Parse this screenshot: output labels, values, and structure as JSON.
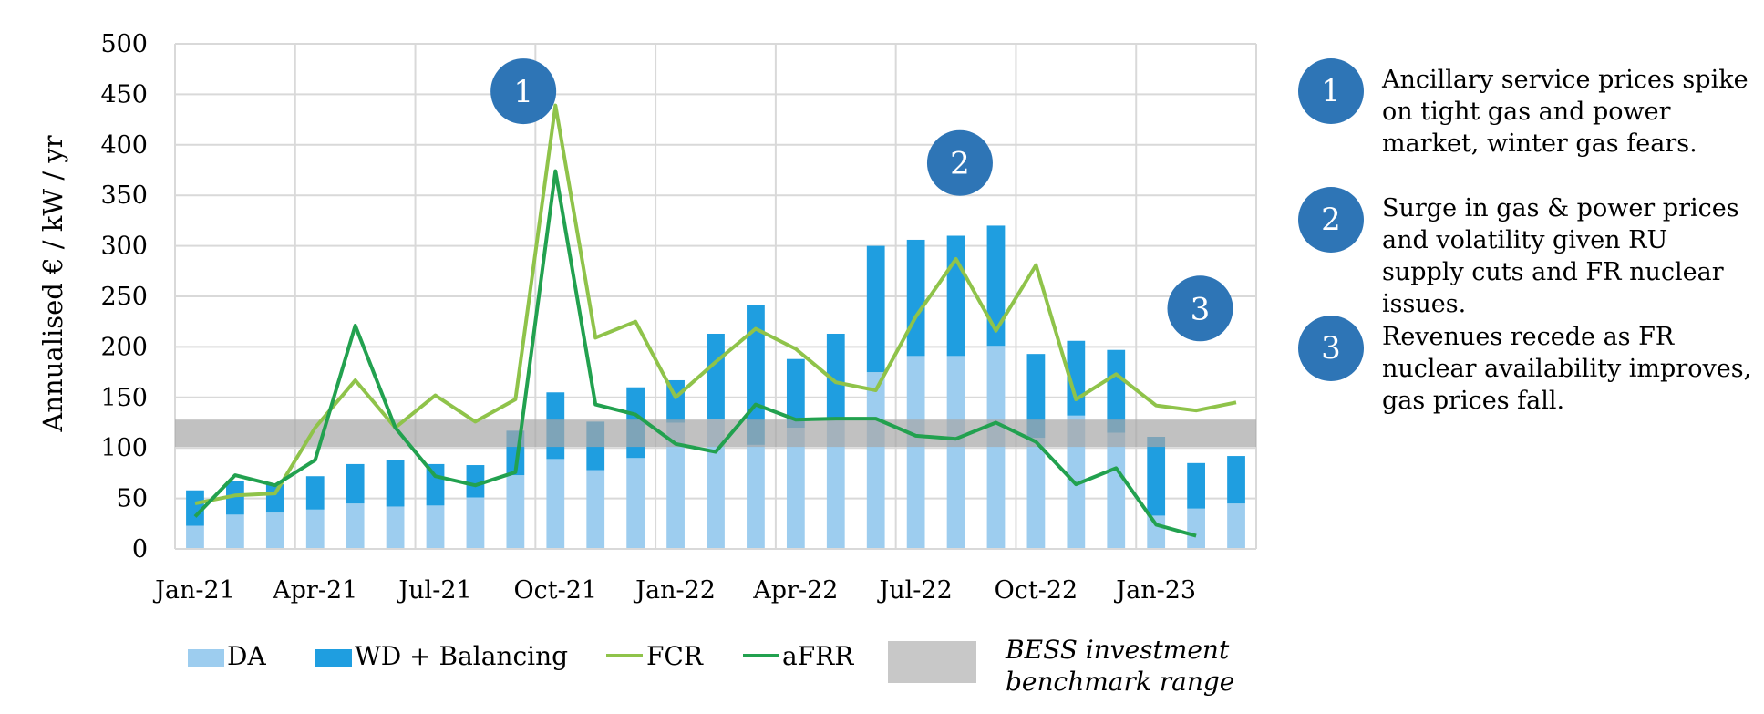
{
  "chart_data": {
    "type": "bar",
    "title": "",
    "xlabel": "",
    "ylabel": "Annualised € / kW / yr",
    "ylim": [
      0,
      500
    ],
    "yticks": [
      0,
      50,
      100,
      150,
      200,
      250,
      300,
      350,
      400,
      450,
      500
    ],
    "grid": true,
    "legend_position": "bottom",
    "categories": [
      "Jan-21",
      "Feb-21",
      "Mar-21",
      "Apr-21",
      "May-21",
      "Jun-21",
      "Jul-21",
      "Aug-21",
      "Sep-21",
      "Oct-21",
      "Nov-21",
      "Dec-21",
      "Jan-22",
      "Feb-22",
      "Mar-22",
      "Apr-22",
      "May-22",
      "Jun-22",
      "Jul-22",
      "Aug-22",
      "Sep-22",
      "Oct-22",
      "Nov-22",
      "Dec-22",
      "Jan-23",
      "Feb-23",
      "Mar-23"
    ],
    "xtick_labels": [
      {
        "index": 0,
        "label": "Jan-21"
      },
      {
        "index": 3,
        "label": "Apr-21"
      },
      {
        "index": 6,
        "label": "Jul-21"
      },
      {
        "index": 9,
        "label": "Oct-21"
      },
      {
        "index": 12,
        "label": "Jan-22"
      },
      {
        "index": 15,
        "label": "Apr-22"
      },
      {
        "index": 18,
        "label": "Jul-22"
      },
      {
        "index": 21,
        "label": "Oct-22"
      },
      {
        "index": 24,
        "label": "Jan-23"
      }
    ],
    "bar_series": [
      {
        "name": "DA",
        "color": "#9dcdef",
        "values": [
          23,
          34,
          36,
          39,
          45,
          42,
          43,
          51,
          73,
          89,
          78,
          90,
          125,
          128,
          103,
          120,
          130,
          175,
          191,
          191,
          201,
          110,
          132,
          115,
          33,
          40,
          45
        ]
      },
      {
        "name": "WD + Balancing",
        "color": "#1f9ee0",
        "values": [
          35,
          33,
          28,
          33,
          39,
          46,
          41,
          32,
          44,
          66,
          48,
          70,
          42,
          85,
          138,
          68,
          83,
          125,
          115,
          119,
          119,
          83,
          74,
          82,
          78,
          45,
          47
        ]
      }
    ],
    "line_series": [
      {
        "name": "FCR",
        "color": "#8fc34a",
        "values": [
          45,
          53,
          55,
          120,
          167,
          120,
          152,
          126,
          148,
          439,
          209,
          225,
          150,
          185,
          218,
          198,
          165,
          157,
          230,
          287,
          216,
          281,
          148,
          173,
          142,
          137,
          145
        ]
      },
      {
        "name": "aFRR",
        "color": "#22a14f",
        "values": [
          32,
          73,
          63,
          88,
          221,
          120,
          72,
          63,
          76,
          374,
          143,
          133,
          104,
          96,
          143,
          128,
          129,
          129,
          112,
          109,
          125,
          106,
          64,
          80,
          24,
          13,
          null
        ]
      }
    ],
    "band": {
      "name": "BESS investment benchmark range",
      "range": [
        101,
        128
      ],
      "color": "#a6a6a6"
    },
    "callouts": [
      {
        "label": "1",
        "index": 8.2,
        "value": 453
      },
      {
        "label": "2",
        "index": 19.1,
        "value": 382
      },
      {
        "label": "3",
        "index": 25.1,
        "value": 238
      }
    ]
  },
  "notes": [
    {
      "num": "1",
      "text": "Ancillary service prices spike on tight gas and power market, winter gas fears."
    },
    {
      "num": "2",
      "text": "Surge in gas & power prices and volatility given RU supply cuts and FR nuclear issues."
    },
    {
      "num": "3",
      "text": "Revenues recede as FR nuclear availability improves, gas prices fall."
    }
  ],
  "legend": {
    "da": "DA",
    "wd": "WD + Balancing",
    "fcr": "FCR",
    "afrr": "aFRR",
    "band_line1": "BESS investment",
    "band_line2": "benchmark range"
  }
}
